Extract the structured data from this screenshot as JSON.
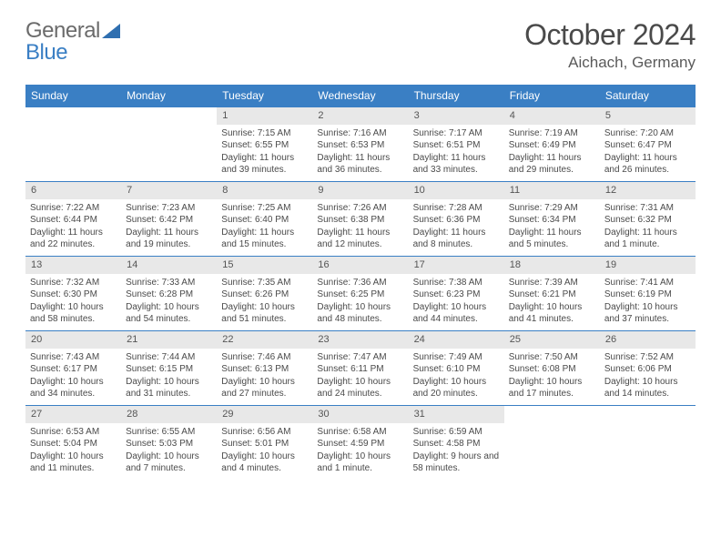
{
  "brand": {
    "general": "General",
    "blue": "Blue"
  },
  "title": "October 2024",
  "location": "Aichach, Germany",
  "weekdays": [
    "Sunday",
    "Monday",
    "Tuesday",
    "Wednesday",
    "Thursday",
    "Friday",
    "Saturday"
  ],
  "colors": {
    "header_bg": "#3a7fc4",
    "header_text": "#ffffff",
    "daynum_bg": "#e8e8e8",
    "border": "#3a7fc4",
    "text": "#4a4a4a"
  },
  "weeks": [
    [
      null,
      null,
      {
        "n": "1",
        "sr": "Sunrise: 7:15 AM",
        "ss": "Sunset: 6:55 PM",
        "dl": "Daylight: 11 hours and 39 minutes."
      },
      {
        "n": "2",
        "sr": "Sunrise: 7:16 AM",
        "ss": "Sunset: 6:53 PM",
        "dl": "Daylight: 11 hours and 36 minutes."
      },
      {
        "n": "3",
        "sr": "Sunrise: 7:17 AM",
        "ss": "Sunset: 6:51 PM",
        "dl": "Daylight: 11 hours and 33 minutes."
      },
      {
        "n": "4",
        "sr": "Sunrise: 7:19 AM",
        "ss": "Sunset: 6:49 PM",
        "dl": "Daylight: 11 hours and 29 minutes."
      },
      {
        "n": "5",
        "sr": "Sunrise: 7:20 AM",
        "ss": "Sunset: 6:47 PM",
        "dl": "Daylight: 11 hours and 26 minutes."
      }
    ],
    [
      {
        "n": "6",
        "sr": "Sunrise: 7:22 AM",
        "ss": "Sunset: 6:44 PM",
        "dl": "Daylight: 11 hours and 22 minutes."
      },
      {
        "n": "7",
        "sr": "Sunrise: 7:23 AM",
        "ss": "Sunset: 6:42 PM",
        "dl": "Daylight: 11 hours and 19 minutes."
      },
      {
        "n": "8",
        "sr": "Sunrise: 7:25 AM",
        "ss": "Sunset: 6:40 PM",
        "dl": "Daylight: 11 hours and 15 minutes."
      },
      {
        "n": "9",
        "sr": "Sunrise: 7:26 AM",
        "ss": "Sunset: 6:38 PM",
        "dl": "Daylight: 11 hours and 12 minutes."
      },
      {
        "n": "10",
        "sr": "Sunrise: 7:28 AM",
        "ss": "Sunset: 6:36 PM",
        "dl": "Daylight: 11 hours and 8 minutes."
      },
      {
        "n": "11",
        "sr": "Sunrise: 7:29 AM",
        "ss": "Sunset: 6:34 PM",
        "dl": "Daylight: 11 hours and 5 minutes."
      },
      {
        "n": "12",
        "sr": "Sunrise: 7:31 AM",
        "ss": "Sunset: 6:32 PM",
        "dl": "Daylight: 11 hours and 1 minute."
      }
    ],
    [
      {
        "n": "13",
        "sr": "Sunrise: 7:32 AM",
        "ss": "Sunset: 6:30 PM",
        "dl": "Daylight: 10 hours and 58 minutes."
      },
      {
        "n": "14",
        "sr": "Sunrise: 7:33 AM",
        "ss": "Sunset: 6:28 PM",
        "dl": "Daylight: 10 hours and 54 minutes."
      },
      {
        "n": "15",
        "sr": "Sunrise: 7:35 AM",
        "ss": "Sunset: 6:26 PM",
        "dl": "Daylight: 10 hours and 51 minutes."
      },
      {
        "n": "16",
        "sr": "Sunrise: 7:36 AM",
        "ss": "Sunset: 6:25 PM",
        "dl": "Daylight: 10 hours and 48 minutes."
      },
      {
        "n": "17",
        "sr": "Sunrise: 7:38 AM",
        "ss": "Sunset: 6:23 PM",
        "dl": "Daylight: 10 hours and 44 minutes."
      },
      {
        "n": "18",
        "sr": "Sunrise: 7:39 AM",
        "ss": "Sunset: 6:21 PM",
        "dl": "Daylight: 10 hours and 41 minutes."
      },
      {
        "n": "19",
        "sr": "Sunrise: 7:41 AM",
        "ss": "Sunset: 6:19 PM",
        "dl": "Daylight: 10 hours and 37 minutes."
      }
    ],
    [
      {
        "n": "20",
        "sr": "Sunrise: 7:43 AM",
        "ss": "Sunset: 6:17 PM",
        "dl": "Daylight: 10 hours and 34 minutes."
      },
      {
        "n": "21",
        "sr": "Sunrise: 7:44 AM",
        "ss": "Sunset: 6:15 PM",
        "dl": "Daylight: 10 hours and 31 minutes."
      },
      {
        "n": "22",
        "sr": "Sunrise: 7:46 AM",
        "ss": "Sunset: 6:13 PM",
        "dl": "Daylight: 10 hours and 27 minutes."
      },
      {
        "n": "23",
        "sr": "Sunrise: 7:47 AM",
        "ss": "Sunset: 6:11 PM",
        "dl": "Daylight: 10 hours and 24 minutes."
      },
      {
        "n": "24",
        "sr": "Sunrise: 7:49 AM",
        "ss": "Sunset: 6:10 PM",
        "dl": "Daylight: 10 hours and 20 minutes."
      },
      {
        "n": "25",
        "sr": "Sunrise: 7:50 AM",
        "ss": "Sunset: 6:08 PM",
        "dl": "Daylight: 10 hours and 17 minutes."
      },
      {
        "n": "26",
        "sr": "Sunrise: 7:52 AM",
        "ss": "Sunset: 6:06 PM",
        "dl": "Daylight: 10 hours and 14 minutes."
      }
    ],
    [
      {
        "n": "27",
        "sr": "Sunrise: 6:53 AM",
        "ss": "Sunset: 5:04 PM",
        "dl": "Daylight: 10 hours and 11 minutes."
      },
      {
        "n": "28",
        "sr": "Sunrise: 6:55 AM",
        "ss": "Sunset: 5:03 PM",
        "dl": "Daylight: 10 hours and 7 minutes."
      },
      {
        "n": "29",
        "sr": "Sunrise: 6:56 AM",
        "ss": "Sunset: 5:01 PM",
        "dl": "Daylight: 10 hours and 4 minutes."
      },
      {
        "n": "30",
        "sr": "Sunrise: 6:58 AM",
        "ss": "Sunset: 4:59 PM",
        "dl": "Daylight: 10 hours and 1 minute."
      },
      {
        "n": "31",
        "sr": "Sunrise: 6:59 AM",
        "ss": "Sunset: 4:58 PM",
        "dl": "Daylight: 9 hours and 58 minutes."
      },
      null,
      null
    ]
  ]
}
